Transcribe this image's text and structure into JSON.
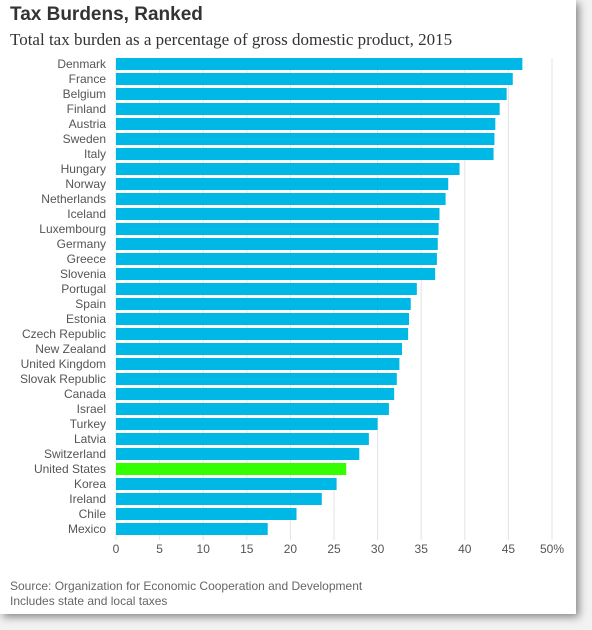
{
  "header": {
    "title": "Tax Burdens, Ranked",
    "subtitle": "Total tax burden as a percentage of gross domestic product, 2015"
  },
  "footer": {
    "source": "Source: Organization for Economic Cooperation and Development",
    "note": "Includes state and local taxes"
  },
  "colors": {
    "bar": "#00b8e6",
    "highlight": "#33ff00",
    "grid": "#e3e3e3",
    "label": "#555555"
  },
  "chart_data": {
    "type": "bar",
    "orientation": "horizontal",
    "title": "Tax Burdens, Ranked",
    "subtitle": "Total tax burden as a percentage of gross domestic product, 2015",
    "categories": [
      "Denmark",
      "France",
      "Belgium",
      "Finland",
      "Austria",
      "Sweden",
      "Italy",
      "Hungary",
      "Norway",
      "Netherlands",
      "Iceland",
      "Luxembourg",
      "Germany",
      "Greece",
      "Slovenia",
      "Portugal",
      "Spain",
      "Estonia",
      "Czech Republic",
      "New Zealand",
      "United Kingdom",
      "Slovak Republic",
      "Canada",
      "Israel",
      "Turkey",
      "Latvia",
      "Switzerland",
      "United States",
      "Korea",
      "Ireland",
      "Chile",
      "Mexico"
    ],
    "values": [
      46.6,
      45.5,
      44.8,
      44.0,
      43.5,
      43.4,
      43.3,
      39.4,
      38.1,
      37.8,
      37.1,
      37.0,
      36.9,
      36.8,
      36.6,
      34.5,
      33.8,
      33.6,
      33.5,
      32.8,
      32.5,
      32.2,
      31.9,
      31.3,
      30.0,
      29.0,
      27.9,
      26.4,
      25.3,
      23.6,
      20.7,
      17.4
    ],
    "highlight": "United States",
    "xlim": [
      0,
      50
    ],
    "xticks": [
      "0",
      "5",
      "10",
      "15",
      "20",
      "25",
      "30",
      "35",
      "40",
      "45",
      "50%"
    ],
    "grid": true
  }
}
